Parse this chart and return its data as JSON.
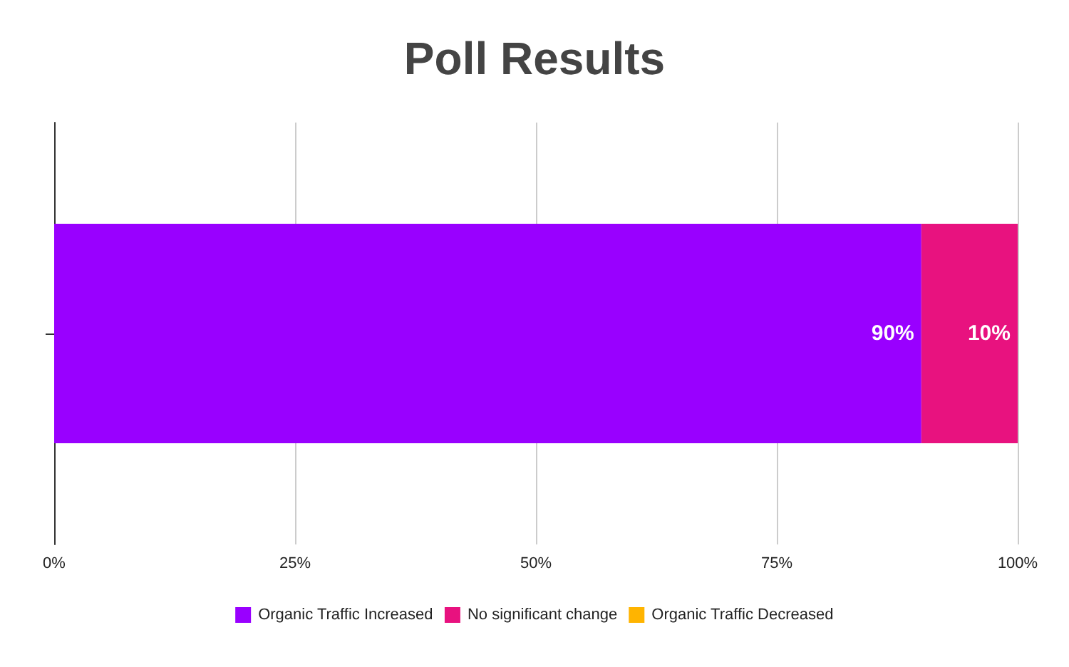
{
  "chart_data": {
    "type": "bar",
    "title": "Poll Results",
    "orientation": "horizontal",
    "stacked": true,
    "categories": [
      null
    ],
    "series": [
      {
        "name": "Organic Traffic Increased",
        "color": "#9900ff",
        "values": [
          90
        ],
        "value_labels": [
          "90%"
        ]
      },
      {
        "name": "No significant change",
        "color": "#e8127f",
        "values": [
          10
        ],
        "value_labels": [
          "10%"
        ]
      },
      {
        "name": "Organic Traffic Decreased",
        "color": "#ffb400",
        "values": [
          0
        ],
        "value_labels": [
          null
        ]
      }
    ],
    "xlim": [
      0,
      100
    ],
    "xticks": [
      {
        "value": 0,
        "label": "0%"
      },
      {
        "value": 25,
        "label": "25%"
      },
      {
        "value": 50,
        "label": "50%"
      },
      {
        "value": 75,
        "label": "75%"
      },
      {
        "value": 100,
        "label": "100%"
      }
    ],
    "grid": "x",
    "legend": "bottom"
  }
}
